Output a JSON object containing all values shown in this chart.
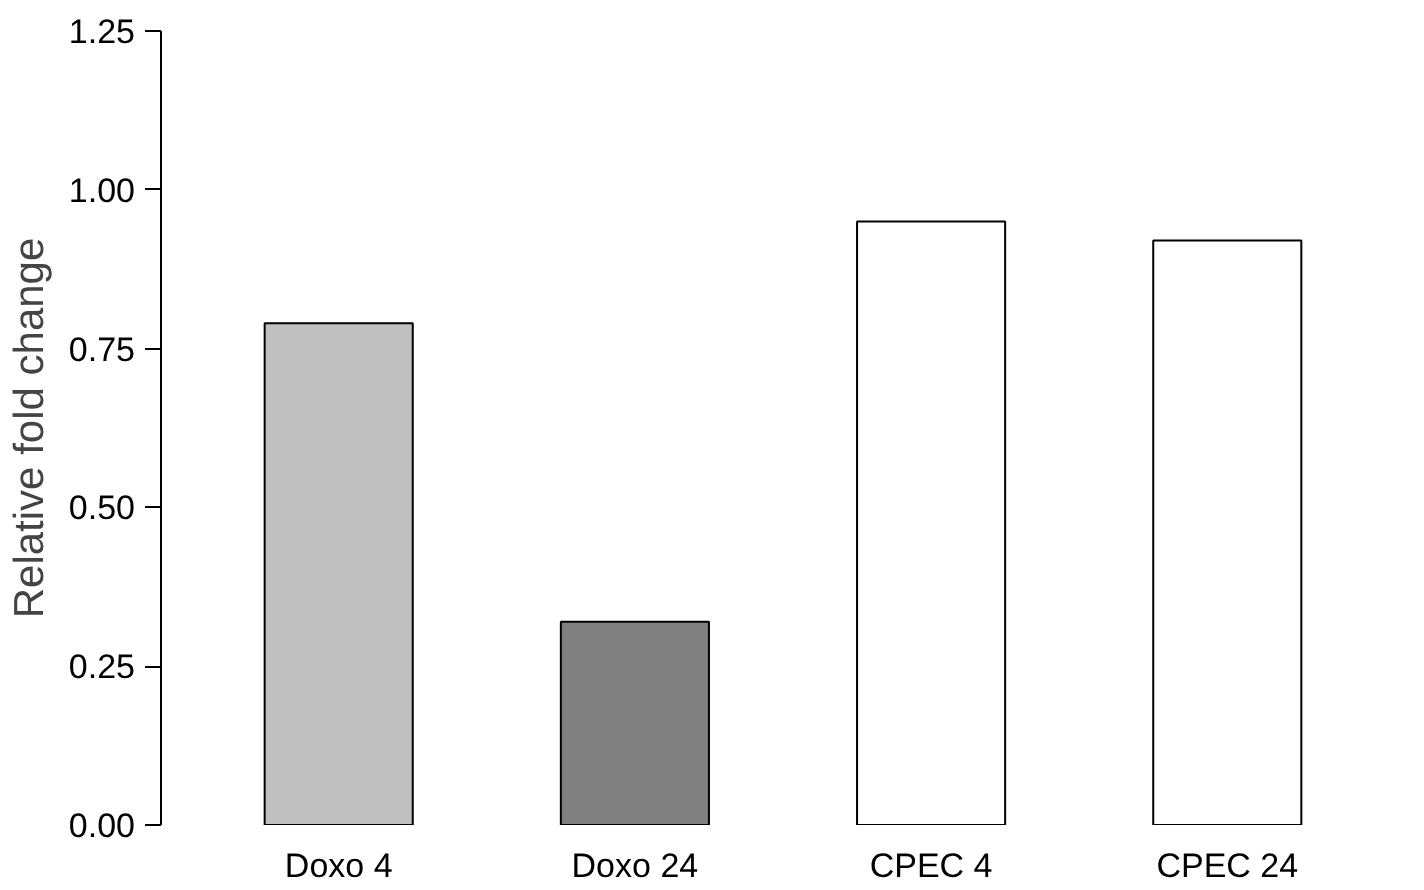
{
  "chart_data": {
    "type": "bar",
    "ylabel": "Relative fold change",
    "categories": [
      "Doxo 4",
      "Doxo 24",
      "CPEC 4",
      "CPEC 24"
    ],
    "values": [
      0.79,
      0.32,
      0.95,
      0.92
    ],
    "colors": [
      "#c0c0c0",
      "#808080",
      "#ffffff",
      "#ffffff"
    ],
    "ylim": [
      0,
      1.25
    ],
    "yticks": [
      {
        "value": 0,
        "label": "0.00"
      },
      {
        "value": 0.25,
        "label": "0.25"
      },
      {
        "value": 0.5,
        "label": "0.50"
      },
      {
        "value": 0.75,
        "label": "0.75"
      },
      {
        "value": 1,
        "label": "1.00"
      },
      {
        "value": 1.25,
        "label": "1.25"
      }
    ],
    "grid": false
  }
}
